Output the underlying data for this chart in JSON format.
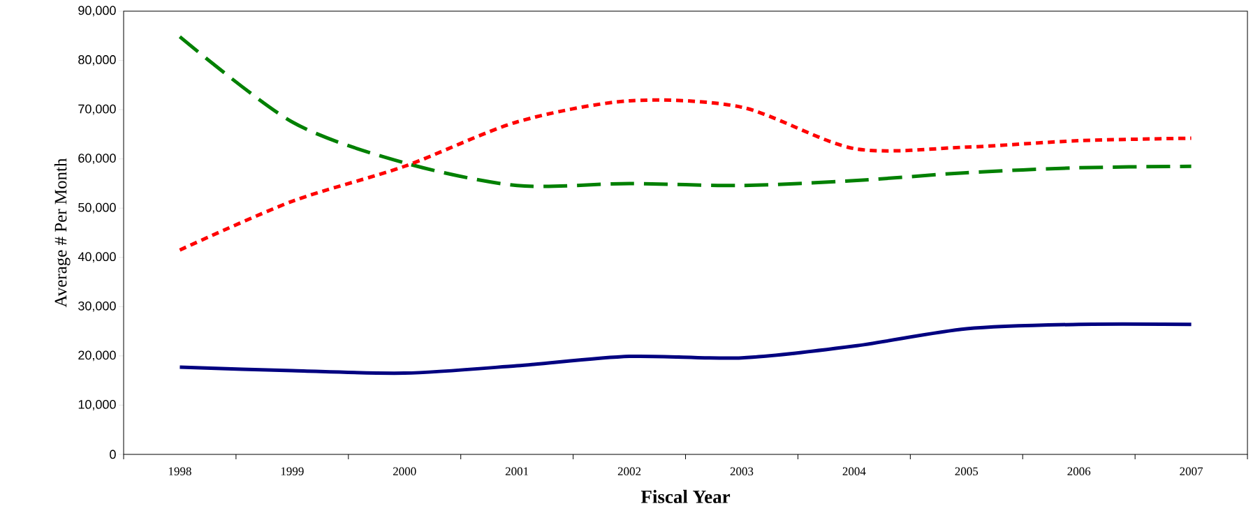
{
  "chart_data": {
    "type": "line",
    "xlabel": "Fiscal Year",
    "ylabel": "Average # Per Month",
    "categories": [
      "1998",
      "1999",
      "2000",
      "2001",
      "2002",
      "2003",
      "2004",
      "2005",
      "2006",
      "2007"
    ],
    "ylim": [
      0,
      90000
    ],
    "yticks": [
      0,
      {
        "value": 10000,
        "label": "10,000"
      },
      {
        "value": 20000,
        "label": "20,000"
      },
      {
        "value": 30000,
        "label": "30,000"
      },
      {
        "value": 40000,
        "label": "40,000"
      },
      {
        "value": 50000,
        "label": "50,000"
      },
      {
        "value": 60000,
        "label": "60,000"
      },
      {
        "value": 70000,
        "label": "70,000"
      },
      {
        "value": 80000,
        "label": "80,000"
      },
      {
        "value": 90000,
        "label": "90,000"
      }
    ],
    "series": [
      {
        "color": "#000080",
        "line_style": "solid",
        "values": [
          17700,
          17000,
          16500,
          18000,
          19900,
          19600,
          22000,
          25500,
          26400,
          26400
        ]
      },
      {
        "color": "#008000",
        "line_style": "dashed",
        "values": [
          84800,
          67500,
          59200,
          54600,
          55000,
          54600,
          55600,
          57200,
          58200,
          58500
        ]
      },
      {
        "color": "#ff0000",
        "line_style": "dotted",
        "values": [
          41500,
          51400,
          58500,
          67500,
          71800,
          70500,
          62100,
          62400,
          63700,
          64200
        ]
      }
    ]
  }
}
